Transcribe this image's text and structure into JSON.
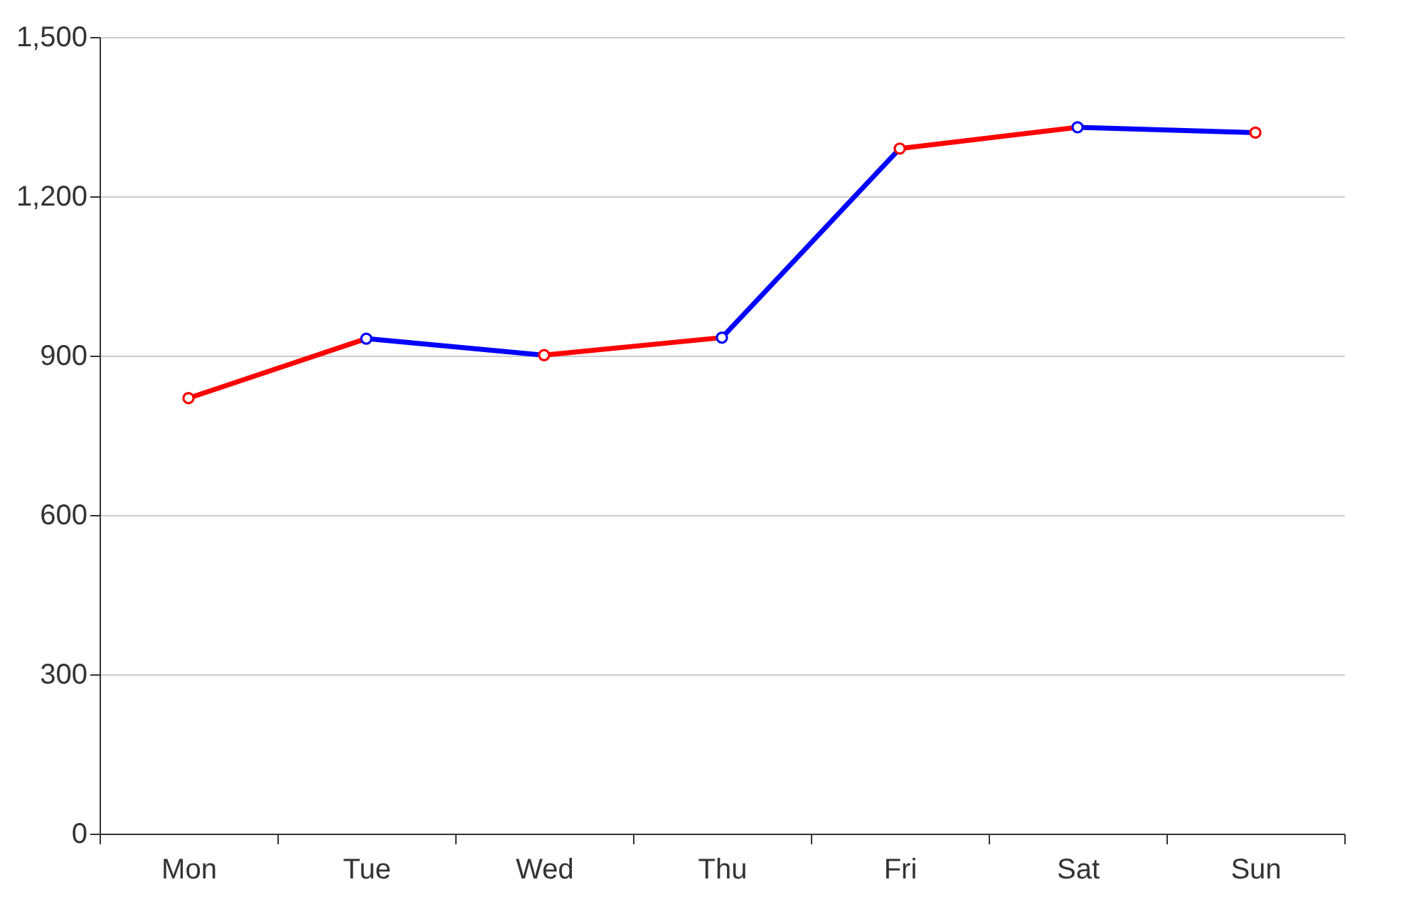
{
  "chart_data": {
    "type": "line",
    "categories": [
      "Mon",
      "Tue",
      "Wed",
      "Thu",
      "Fri",
      "Sat",
      "Sun"
    ],
    "series": [
      {
        "color": "#ff0000",
        "values": [
          820,
          932,
          null,
          null,
          null,
          null,
          null
        ]
      },
      {
        "color": "#0000ff",
        "values": [
          null,
          932,
          901,
          null,
          null,
          null,
          null
        ]
      },
      {
        "color": "#ff0000",
        "values": [
          null,
          null,
          901,
          934,
          null,
          null,
          null
        ]
      },
      {
        "color": "#0000ff",
        "values": [
          null,
          null,
          null,
          934,
          1290,
          null,
          null
        ]
      },
      {
        "color": "#ff0000",
        "values": [
          null,
          null,
          null,
          null,
          1290,
          1330,
          null
        ]
      },
      {
        "color": "#0000ff",
        "values": [
          null,
          null,
          null,
          null,
          null,
          1330,
          1320
        ]
      },
      {
        "type": "scatter",
        "marker": "circle",
        "values": [
          820,
          932,
          901,
          934,
          1290,
          1330,
          1320
        ],
        "colors": [
          "#ff0000",
          "#0000ff",
          "#ff0000",
          "#0000ff",
          "#ff0000",
          "#0000ff",
          "#ff0000"
        ]
      }
    ],
    "ylim": [
      0,
      1500
    ],
    "yticks": [
      0,
      {
        "value": 300,
        "label": "300"
      },
      {
        "value": 600,
        "label": "600"
      },
      {
        "value": 900,
        "label": "900"
      },
      {
        "value": 1200,
        "label": "1,200"
      },
      {
        "value": 1500,
        "label": "1,500"
      }
    ],
    "grid": "y",
    "marker": "none"
  }
}
